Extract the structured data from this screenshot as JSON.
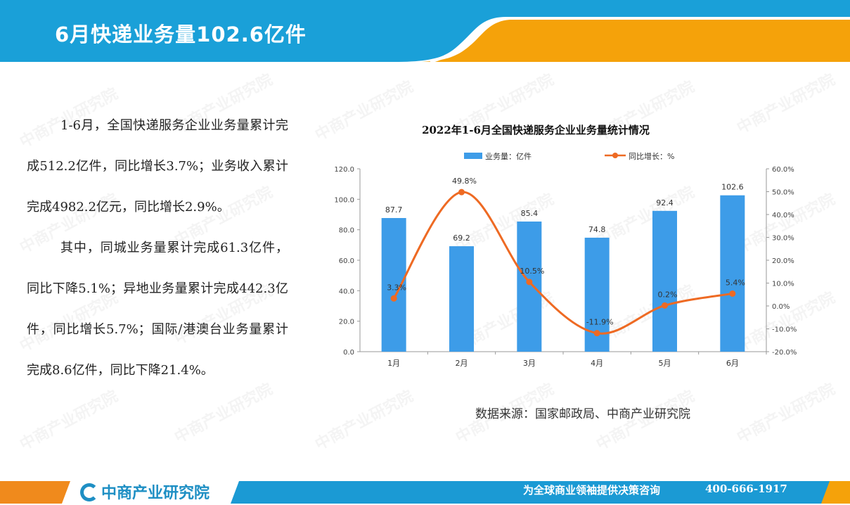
{
  "header": {
    "title": "6月快递业务量102.6亿件"
  },
  "body": {
    "paragraph1": "1-6月，全国快递服务企业业务量累计完成512.2亿件，同比增长3.7%；业务收入累计完成4982.2亿元，同比增长2.9%。",
    "paragraph2": "其中，同城业务量累计完成61.3亿件，同比下降5.1%；异地业务量累计完成442.3亿件，同比增长5.7%；国际/港澳台业务量累计完成8.6亿件，同比下降21.4%。"
  },
  "chart_data": {
    "type": "bar",
    "title": "2022年1-6月全国快递服务企业业务量统计情况",
    "categories": [
      "1月",
      "2月",
      "3月",
      "4月",
      "5月",
      "6月"
    ],
    "series": [
      {
        "name": "业务量：亿件",
        "type": "bar",
        "axis": "left",
        "values": [
          87.7,
          69.2,
          85.4,
          74.8,
          92.4,
          102.6
        ],
        "labels": [
          "87.7",
          "69.2",
          "85.4",
          "74.8",
          "92.4",
          "102.6"
        ],
        "color": "#3d9ce8"
      },
      {
        "name": "同比增长：%",
        "type": "line",
        "axis": "right",
        "values": [
          3.3,
          49.8,
          10.5,
          -11.9,
          0.2,
          5.4
        ],
        "labels": [
          "3.3%",
          "49.8%",
          "10.5%",
          "-11.9%",
          "0.2%",
          "5.4%"
        ],
        "color": "#ee6a23"
      }
    ],
    "ylim": [
      0,
      120
    ],
    "y_ticks": [
      "0.0",
      "20.0",
      "40.0",
      "60.0",
      "80.0",
      "100.0",
      "120.0"
    ],
    "y2lim": [
      -20,
      60
    ],
    "y2_ticks": [
      "-20.0%",
      "-10.0%",
      "0.0%",
      "10.0%",
      "20.0%",
      "30.0%",
      "40.0%",
      "50.0%",
      "60.0%"
    ],
    "legend": "top-center",
    "grid": false
  },
  "source": "数据来源：国家邮政局、中商产业研究院",
  "footer": {
    "logo": "中商产业研究院",
    "slogan": "为全球商业领袖提供决策咨询",
    "phone": "400-666-1917"
  },
  "watermark": {
    "text": "中商产业研究院",
    "url": "www.askci.com/reports"
  },
  "colors": {
    "header_blue": "#1aa0d8",
    "header_orange": "#f5a20a",
    "footer_blue": "#1b9ad4",
    "footer_orange": "#f08a1c"
  }
}
